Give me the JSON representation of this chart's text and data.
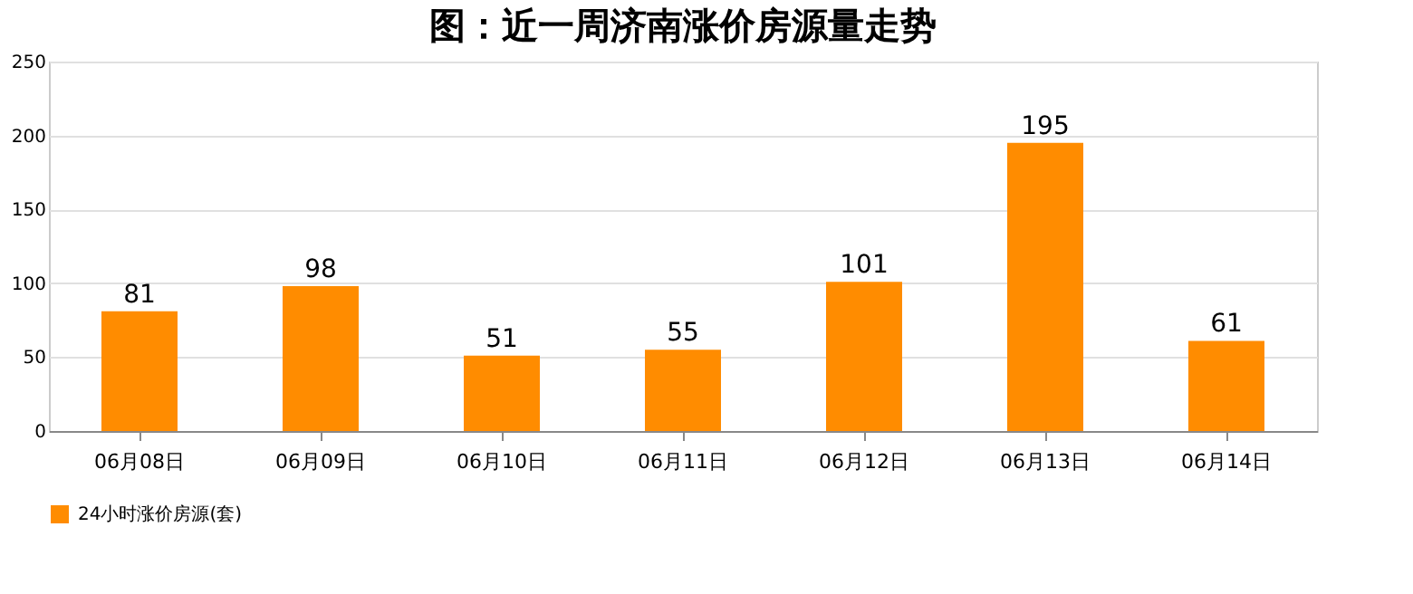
{
  "chart_data": {
    "type": "bar",
    "title": "图：近一周济南涨价房源量走势",
    "categories": [
      "06月08日",
      "06月09日",
      "06月10日",
      "06月11日",
      "06月12日",
      "06月13日",
      "06月14日"
    ],
    "series": [
      {
        "name": "24小时涨价房源(套)",
        "color": "#ff8c00",
        "values": [
          81,
          98,
          51,
          55,
          101,
          195,
          61
        ]
      }
    ],
    "ylim": [
      0,
      250
    ],
    "yticks": [
      0,
      50,
      100,
      150,
      200,
      250
    ],
    "grid": "y",
    "legend": "bottom",
    "data_labels": true
  }
}
